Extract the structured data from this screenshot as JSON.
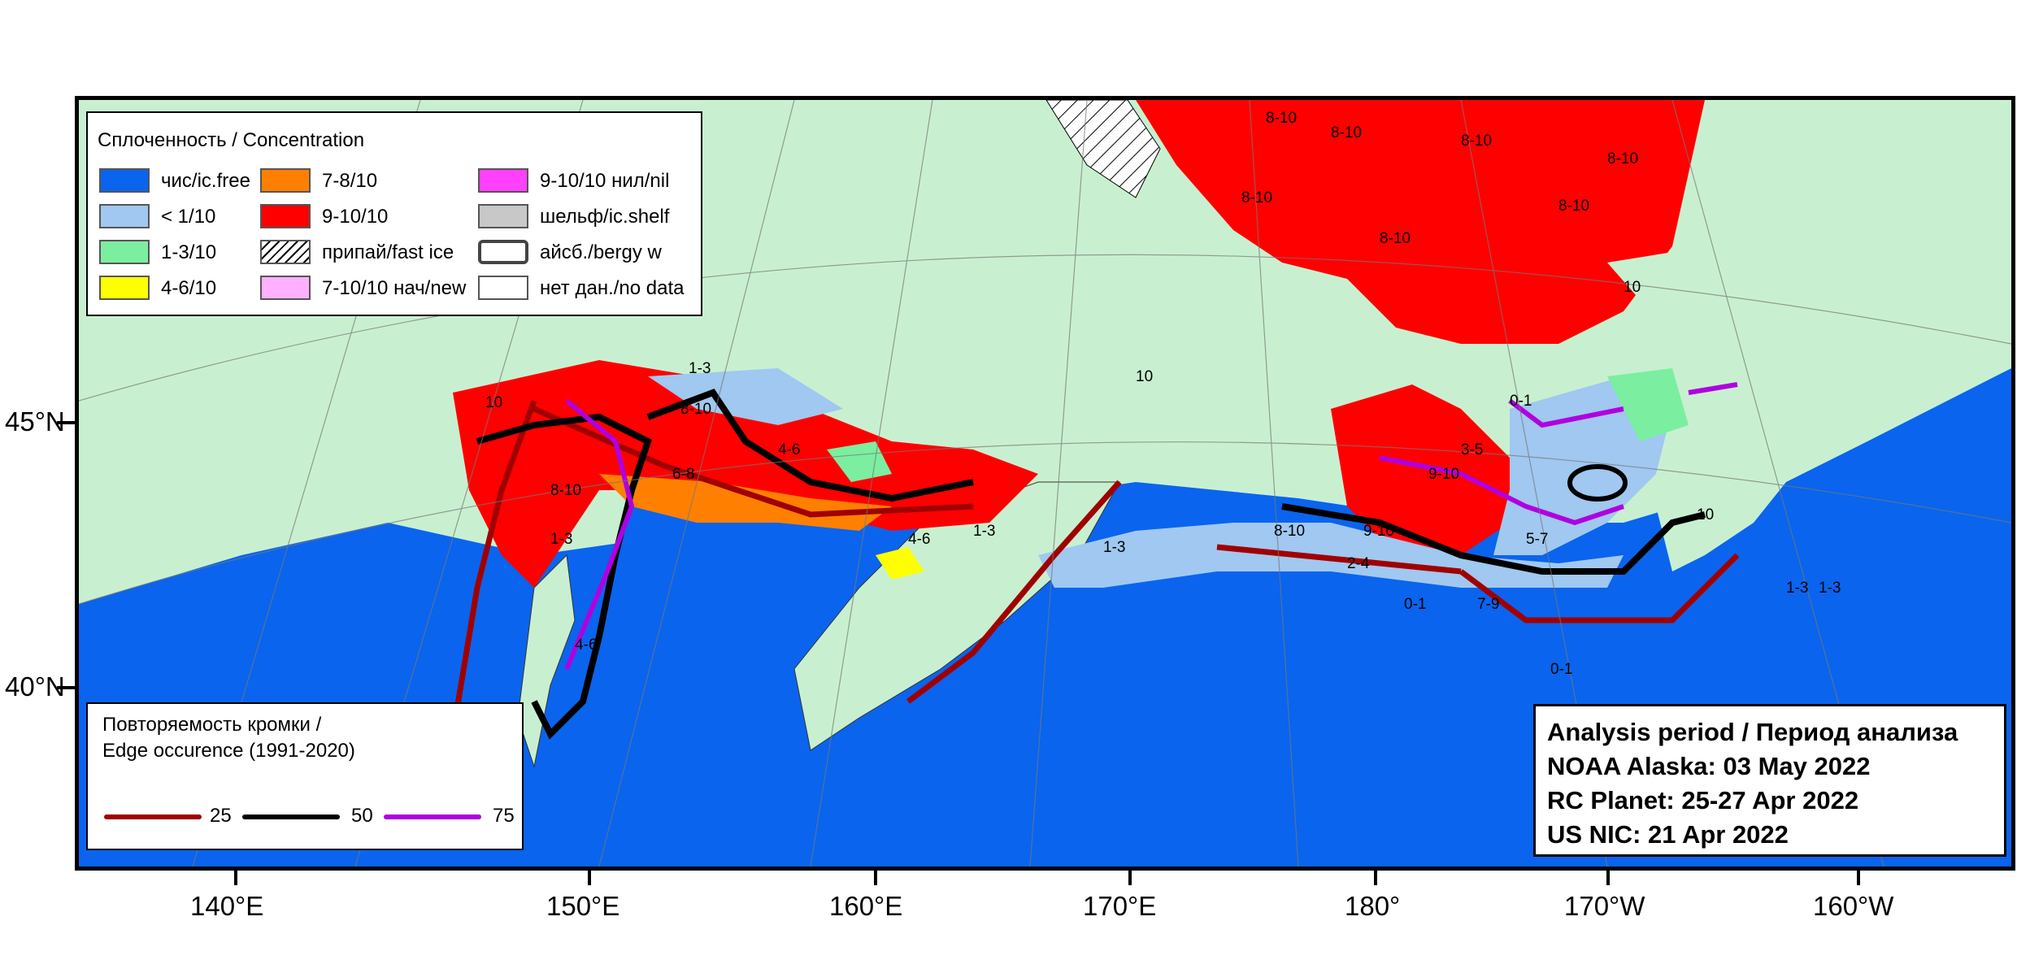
{
  "colors": {
    "land": "#c8f0d0",
    "water": "#0a64ee",
    "ice_free": "#0a64ee",
    "lt_1_10": "#a0c8f0",
    "c1_3": "#7ceea0",
    "c4_6": "#ffff00",
    "c7_8": "#ff8000",
    "c9_10": "#ff0000",
    "nilas": "#ff40ff",
    "new_ice": "#ffb0ff",
    "shelf": "#c8c8c8",
    "edge25": "#a00000",
    "edge50": "#000000",
    "edge75": "#b000e0"
  },
  "concentration_legend": {
    "title": "Сплоченность / Concentration",
    "items": [
      {
        "label": "чис/ic.free",
        "color": "#0a64ee",
        "icon": "solid"
      },
      {
        "label": "< 1/10",
        "color": "#a0c8f0",
        "icon": "solid"
      },
      {
        "label": "1-3/10",
        "color": "#7ceea0",
        "icon": "solid"
      },
      {
        "label": "4-6/10",
        "color": "#ffff00",
        "icon": "solid"
      },
      {
        "label": "7-8/10",
        "color": "#ff8000",
        "icon": "solid"
      },
      {
        "label": "9-10/10",
        "color": "#ff0000",
        "icon": "solid"
      },
      {
        "label": "припай/fast ice",
        "color": "#ffffff",
        "icon": "hatched"
      },
      {
        "label": "7-10/10 нач/new",
        "color": "#ffb0ff",
        "icon": "solid"
      },
      {
        "label": "9-10/10 нил/nil",
        "color": "#ff40ff",
        "icon": "solid"
      },
      {
        "label": "шельф/ic.shelf",
        "color": "#c8c8c8",
        "icon": "solid"
      },
      {
        "label": "айсб./bergy w",
        "color": "#ffffff",
        "icon": "rounded-outline"
      },
      {
        "label": "нет дан./no data",
        "color": "#ffffff",
        "icon": "solid"
      }
    ]
  },
  "edge_legend": {
    "title_line1": "Повторяемость кромки /",
    "title_line2": "Edge occurence (1991-2020)",
    "items": [
      {
        "label": "25",
        "color": "#a00000"
      },
      {
        "label": "50",
        "color": "#000000"
      },
      {
        "label": "75",
        "color": "#b000e0"
      }
    ]
  },
  "analysis": {
    "line1": "Analysis period / Период анализа",
    "line2": "NOAA Alaska: 03 May 2022",
    "line3": "RC Planet: 25-27 Apr 2022",
    "line4": "US NIC: 21 Apr 2022"
  },
  "longitude_labels": [
    "140°E",
    "150°E",
    "160°E",
    "170°E",
    "180°",
    "170°W",
    "160°W"
  ],
  "latitude_labels": [
    "45°N",
    "40°N"
  ],
  "map_labels": [
    "8-10",
    "8-10",
    "8-10",
    "8-10",
    "8-10",
    "8-10",
    "8-10",
    "8-10",
    "8-10",
    "8-10",
    "1-3",
    "1-3",
    "1-3",
    "1-3",
    "4-6",
    "4-6",
    "4-6",
    "6-8",
    "10",
    "10",
    "10",
    "10",
    "9-10",
    "9-10",
    "0-1",
    "0-1",
    "0-1",
    "2-4",
    "7-9",
    "5-7",
    "3-5",
    "1-3",
    "1-3"
  ]
}
